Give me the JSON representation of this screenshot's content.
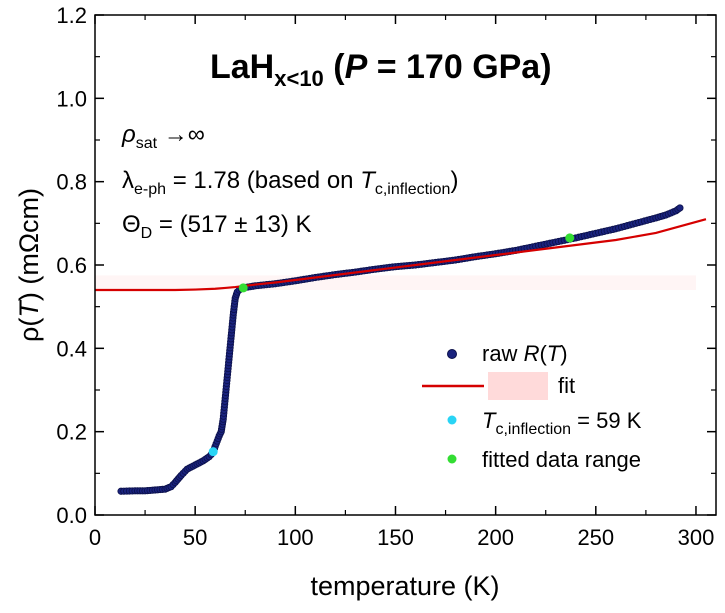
{
  "chart_data": {
    "type": "scatter",
    "title": {
      "base": "LaH",
      "sub": "x<10",
      "open": " (",
      "var": "P",
      "rest": " = 170 GPa)"
    },
    "xlabel": "temperature (K)",
    "ylabel": {
      "pre": "ρ(",
      "var": "T",
      "post": ") (mΩcm)"
    },
    "xlim": [
      0,
      310
    ],
    "ylim": [
      0,
      1.2
    ],
    "x_ticks": [
      "0",
      "50",
      "100",
      "150",
      "200",
      "250",
      "300"
    ],
    "y_ticks": [
      "0.0",
      "0.2",
      "0.4",
      "0.6",
      "0.8",
      "1.0",
      "1.2"
    ],
    "annotations": {
      "line1": {
        "sym": "ρ",
        "sub": "sat",
        "rest": " →∞"
      },
      "line2": {
        "sym": "λ",
        "sub": "e-ph",
        "mid": " = 1.78 (based on ",
        "var": "T",
        "sub2": "c,inflection",
        "end": ")"
      },
      "line3": {
        "sym": "Θ",
        "sub": "D",
        "rest": " = (517 ± 13) K"
      }
    },
    "legend": {
      "position": "lower-right",
      "items": [
        {
          "pre": "raw ",
          "var": "R",
          "post": "(T)"
        },
        {
          "pre": "",
          "var": "",
          "post": "fit"
        },
        {
          "pre": "",
          "var": "T",
          "sub": "c,inflection",
          "post": " = 59 K"
        },
        {
          "pre": "fitted data range",
          "var": "",
          "post": ""
        }
      ]
    },
    "colors": {
      "raw": "#1a237e",
      "fit": "#d50000",
      "inflection": "#29d4f5",
      "fitted_range": "#33dd33",
      "fit_band": "#ffd6d6"
    },
    "series": [
      {
        "name": "raw R(T)",
        "kind": "markers",
        "x": [
          13,
          20,
          25,
          30,
          35,
          38,
          40,
          43,
          46,
          50,
          54,
          57,
          59,
          60,
          62,
          63,
          64,
          65,
          66,
          67,
          68,
          69,
          70,
          71,
          72,
          73,
          74,
          75,
          80,
          90,
          100,
          110,
          120,
          130,
          140,
          150,
          160,
          170,
          180,
          190,
          200,
          210,
          220,
          230,
          240,
          250,
          260,
          270,
          280,
          285,
          290,
          292
        ],
        "y": [
          0.057,
          0.058,
          0.058,
          0.06,
          0.062,
          0.068,
          0.078,
          0.095,
          0.11,
          0.12,
          0.13,
          0.14,
          0.15,
          0.165,
          0.19,
          0.2,
          0.23,
          0.28,
          0.33,
          0.38,
          0.43,
          0.48,
          0.52,
          0.535,
          0.54,
          0.543,
          0.545,
          0.546,
          0.55,
          0.555,
          0.562,
          0.57,
          0.577,
          0.583,
          0.59,
          0.596,
          0.6,
          0.606,
          0.612,
          0.62,
          0.627,
          0.635,
          0.645,
          0.655,
          0.665,
          0.676,
          0.687,
          0.7,
          0.713,
          0.72,
          0.73,
          0.737
        ]
      },
      {
        "name": "fit",
        "kind": "line",
        "x": [
          0,
          20,
          40,
          50,
          60,
          65,
          70,
          75,
          80,
          90,
          100,
          120,
          140,
          160,
          180,
          200,
          220,
          240,
          260,
          280,
          305
        ],
        "y": [
          0.54,
          0.54,
          0.54,
          0.541,
          0.543,
          0.545,
          0.547,
          0.55,
          0.553,
          0.558,
          0.564,
          0.576,
          0.588,
          0.6,
          0.612,
          0.624,
          0.636,
          0.648,
          0.66,
          0.677,
          0.71
        ]
      },
      {
        "name": "T c,inflection = 59 K",
        "kind": "point",
        "x": [
          59
        ],
        "y": [
          0.152
        ]
      },
      {
        "name": "fitted data range",
        "kind": "point",
        "x": [
          74,
          237
        ],
        "y": [
          0.545,
          0.665
        ]
      }
    ]
  }
}
